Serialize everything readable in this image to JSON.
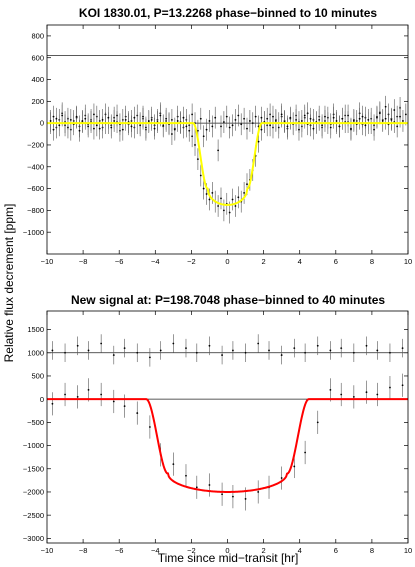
{
  "figure": {
    "ylabel": "Relative flux decrement [ppm]",
    "xlabel": "Time since mid−transit [hr]"
  },
  "chart_data": [
    {
      "type": "scatter",
      "title": "KOI 1830.01, P=13.2268 phase−binned to 10 minutes",
      "xlim": [
        -10,
        10
      ],
      "ylim": [
        -1200,
        900
      ],
      "x_ticks": [
        -10,
        -8,
        -6,
        -4,
        -2,
        0,
        2,
        4,
        6,
        8,
        10
      ],
      "x_tick_labels": [
        "−10",
        "−8",
        "−6",
        "−4",
        "−2",
        "0",
        "2",
        "4",
        "6",
        "8",
        "10"
      ],
      "y_ticks": [
        -1000,
        -800,
        -600,
        -400,
        -200,
        0,
        200,
        400,
        600,
        800
      ],
      "y_tick_labels": [
        "−1000",
        "−800",
        "−600",
        "−400",
        "−200",
        "0",
        "200",
        "400",
        "600",
        "800"
      ],
      "reference_lines": [
        0,
        620
      ],
      "offset_series_shift": 620,
      "error_bar": 100,
      "grid": false,
      "model": {
        "color": "#ffff00",
        "depth": 750,
        "t_ingress_start": -1.9,
        "t_flat_start": -1.1,
        "t_flat_end": 1.1,
        "t_egress_end": 1.9,
        "limb_darkening_shape": 0.45
      },
      "binned_points": {
        "x_start": -9.8,
        "x_step": 0.16,
        "y": [
          20,
          -60,
          40,
          -20,
          70,
          10,
          -40,
          30,
          -10,
          60,
          -70,
          20,
          40,
          -30,
          10,
          80,
          -20,
          -50,
          30,
          0,
          50,
          -40,
          20,
          70,
          -10,
          -60,
          30,
          10,
          -30,
          50,
          0,
          -20,
          60,
          -40,
          20,
          30,
          -50,
          10,
          70,
          -20,
          40,
          -10,
          30,
          -60,
          20,
          0,
          50,
          -30,
          -70,
          -120,
          -200,
          -330,
          -480,
          -600,
          -650,
          -700,
          -640,
          -720,
          -760,
          -690,
          -800,
          -740,
          -820,
          -700,
          -760,
          -680,
          -720,
          -640,
          -560,
          -520,
          -430,
          -300,
          -170,
          -60,
          10,
          40,
          -20,
          60,
          20,
          -40,
          80,
          10,
          -30,
          50,
          0,
          30,
          -60,
          20,
          70,
          -10,
          40,
          -50,
          10,
          30,
          -20,
          60,
          0,
          -40,
          50,
          20,
          -30,
          40,
          10,
          70,
          -50,
          20,
          -10,
          40,
          60,
          -20,
          30,
          0,
          -60,
          50,
          90,
          20,
          40,
          -10,
          30,
          10,
          -30,
          60,
          20,
          80,
          120
        ]
      },
      "offset_points": {
        "y": [
          0,
          60,
          -40,
          30,
          90,
          -20,
          40,
          -60,
          20,
          50,
          -30,
          10,
          70,
          -10,
          30,
          -50,
          60,
          20,
          -40,
          80,
          0,
          -20,
          50,
          10,
          -70,
          30,
          60,
          -10,
          20,
          -40,
          70,
          0,
          40,
          -60,
          10,
          50,
          -20,
          30,
          90,
          -30,
          20,
          0,
          -100,
          -50,
          60,
          10,
          -40,
          30,
          -20,
          80,
          0,
          -70,
          40,
          -120,
          -60,
          20,
          -30,
          50,
          -250,
          -30,
          10,
          60,
          -40,
          -20,
          30,
          70,
          -10,
          40,
          -50,
          20,
          0,
          60,
          -30,
          50,
          10,
          -20,
          80,
          -40,
          30,
          0,
          60,
          20,
          -50,
          40,
          -10,
          70,
          10,
          -30,
          50,
          90,
          -20,
          30,
          0,
          60,
          -40,
          20,
          50,
          -10,
          80,
          0,
          -30,
          40,
          70,
          10,
          -60,
          30,
          20,
          90,
          -10,
          50,
          0,
          40,
          -20,
          60,
          100,
          30,
          150,
          80,
          40,
          120,
          60,
          140
        ]
      }
    },
    {
      "type": "scatter",
      "title": "New signal at: P=198.7048 phase−binned to 40 minutes",
      "xlim": [
        -10,
        10
      ],
      "ylim": [
        -3100,
        1900
      ],
      "x_ticks": [
        -10,
        -8,
        -6,
        -4,
        -2,
        0,
        2,
        4,
        6,
        8,
        10
      ],
      "x_tick_labels": [
        "−10",
        "−8",
        "−6",
        "−4",
        "−2",
        "0",
        "2",
        "4",
        "6",
        "8",
        "10"
      ],
      "y_ticks": [
        -3000,
        -2500,
        -2000,
        -1500,
        -1000,
        -500,
        0,
        500,
        1000,
        1500
      ],
      "y_tick_labels": [
        "−3000",
        "−2500",
        "−2000",
        "−1500",
        "−1000",
        "−500",
        "0",
        "500",
        "1000",
        "1500"
      ],
      "reference_lines": [
        0,
        1000
      ],
      "offset_series_shift": 1000,
      "grid": false,
      "model": {
        "color": "#ff0000",
        "depth": 2000,
        "t_ingress_start": -4.5,
        "t_flat_start": -3.3,
        "t_flat_end": 3.3,
        "t_egress_end": 4.5,
        "limb_darkening_shape": 0.85
      },
      "binned_points": {
        "x": [
          -9.7,
          -9.0,
          -8.3,
          -7.7,
          -7.0,
          -6.3,
          -5.7,
          -5.0,
          -4.3,
          -3.7,
          -3.0,
          -2.3,
          -1.7,
          -1.0,
          -0.3,
          0.3,
          1.0,
          1.7,
          2.3,
          3.0,
          3.7,
          4.3,
          5.0,
          5.7,
          6.3,
          7.0,
          7.7,
          8.3,
          9.0,
          9.7
        ],
        "y": [
          -100,
          100,
          50,
          200,
          100,
          -50,
          -150,
          -300,
          -600,
          -1200,
          -1400,
          -1650,
          -1900,
          -1850,
          -2050,
          -2100,
          -2150,
          -2000,
          -1900,
          -1700,
          -1450,
          -1150,
          -500,
          200,
          100,
          50,
          150,
          100,
          250,
          300
        ],
        "err": [
          250,
          250,
          250,
          250,
          250,
          250,
          250,
          250,
          250,
          250,
          250,
          250,
          250,
          250,
          250,
          250,
          250,
          250,
          250,
          250,
          250,
          250,
          250,
          250,
          250,
          250,
          250,
          250,
          250,
          250
        ]
      },
      "offset_points": {
        "x": [
          -9.7,
          -9.0,
          -8.3,
          -7.7,
          -7.0,
          -6.3,
          -5.7,
          -5.0,
          -4.3,
          -3.7,
          -3.0,
          -2.3,
          -1.7,
          -1.0,
          -0.3,
          0.3,
          1.0,
          1.7,
          2.3,
          3.0,
          3.7,
          4.3,
          5.0,
          5.7,
          6.3,
          7.0,
          7.7,
          8.3,
          9.0,
          9.7
        ],
        "y": [
          1050,
          1000,
          1150,
          1050,
          1200,
          950,
          1100,
          1000,
          900,
          1050,
          1200,
          1100,
          1000,
          1150,
          950,
          1050,
          1000,
          1200,
          1050,
          950,
          1100,
          1000,
          1150,
          1050,
          1100,
          1000,
          1150,
          1050,
          1000,
          1100
        ],
        "err": [
          200,
          200,
          200,
          200,
          200,
          200,
          200,
          200,
          200,
          200,
          200,
          200,
          200,
          200,
          200,
          200,
          200,
          200,
          200,
          200,
          200,
          200,
          200,
          200,
          200,
          200,
          200,
          200,
          200,
          200
        ]
      }
    }
  ]
}
